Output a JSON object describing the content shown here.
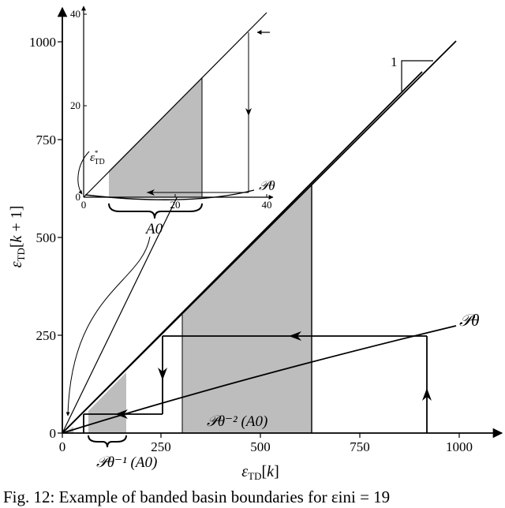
{
  "main_axes": {
    "xlabel": "εTD[k]",
    "ylabel": "εTD[k+1]",
    "x_ticks": [
      "0",
      "250",
      "500",
      "750",
      "1000"
    ],
    "y_ticks": [
      "0",
      "250",
      "500",
      "750",
      "1000"
    ],
    "xlim": [
      0,
      1100
    ],
    "ylim": [
      0,
      1000
    ]
  },
  "inset_axes": {
    "x_ticks": [
      "0",
      "20",
      "40"
    ],
    "y_ticks": [
      "0",
      "20",
      "40"
    ],
    "xlim": [
      0,
      40
    ],
    "ylim": [
      0,
      40
    ],
    "fixed_point_label": "ε*TD"
  },
  "labels": {
    "map": "𝒫θ",
    "inset_map": "𝒫θ",
    "basin": "A0",
    "preimage1": "𝒫θ⁻¹ (A0)",
    "preimage2": "𝒫θ⁻² (A0)",
    "slope": "1"
  },
  "caption": "Fig. 12: Example of banded basin boundaries for εini = 19"
}
